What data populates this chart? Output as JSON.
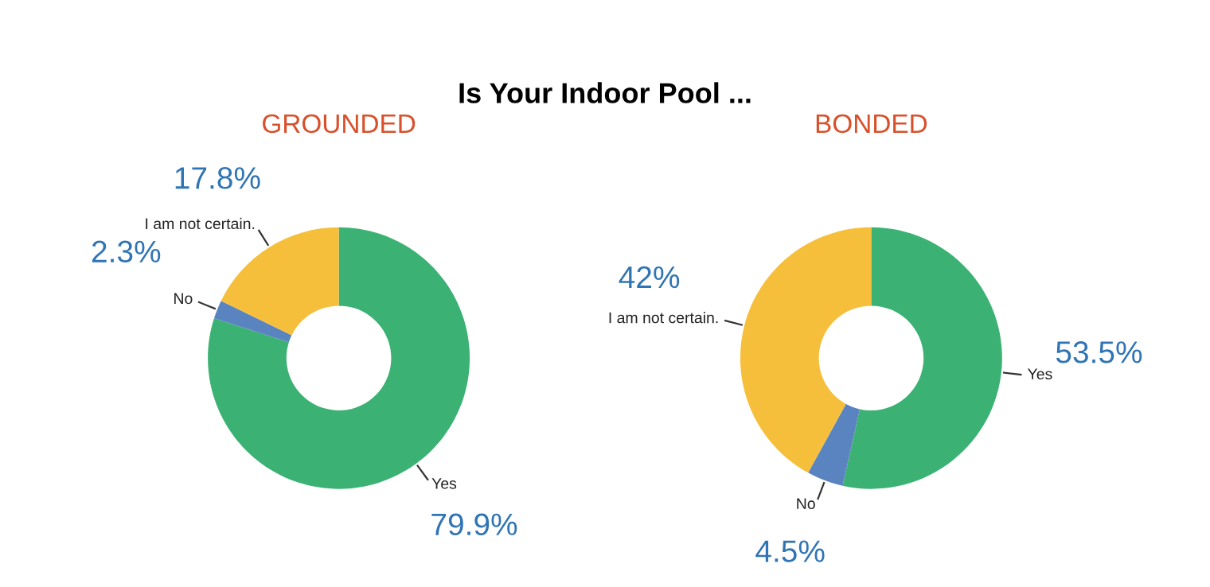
{
  "chart_data": [
    {
      "type": "donut",
      "title": "Is Your Indoor Pool ...",
      "subtitle": "GROUNDED",
      "categories": [
        "Yes",
        "No",
        "I am not certain."
      ],
      "values": [
        79.9,
        2.3,
        17.8
      ],
      "colors": [
        "#3bb273",
        "#5a84c0",
        "#f6bf3b"
      ],
      "value_labels": [
        "79.9%",
        "2.3%",
        "17.8%"
      ]
    },
    {
      "type": "donut",
      "subtitle": "BONDED",
      "categories": [
        "Yes",
        "No",
        "I am not certain."
      ],
      "values": [
        53.5,
        4.5,
        42
      ],
      "colors": [
        "#3bb273",
        "#5a84c0",
        "#f6bf3b"
      ],
      "value_labels": [
        "53.5%",
        "4.5%",
        "42%"
      ]
    }
  ]
}
